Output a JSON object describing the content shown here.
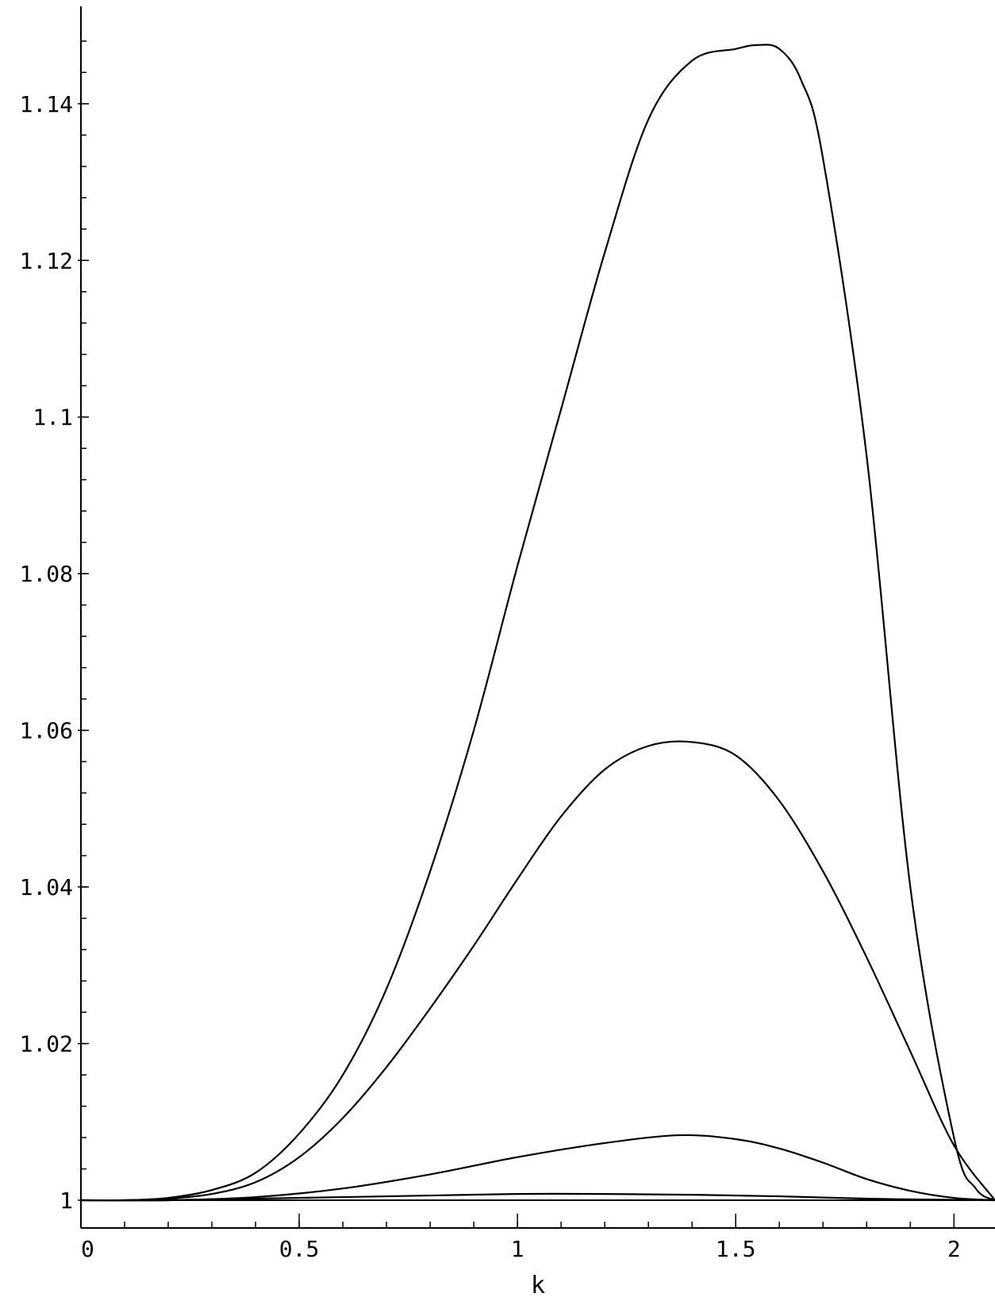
{
  "chart_data": {
    "type": "line",
    "title": "",
    "xlabel": "k",
    "ylabel": "",
    "xlim": [
      0,
      2.094
    ],
    "ylim": [
      1.0,
      1.1495
    ],
    "grid": false,
    "legend": "none",
    "line_color": "#000000",
    "x_ticks": [
      {
        "value": 0,
        "label": "0"
      },
      {
        "value": 0.5,
        "label": "0.5"
      },
      {
        "value": 1,
        "label": "1"
      },
      {
        "value": 1.5,
        "label": "1.5"
      },
      {
        "value": 2,
        "label": "2"
      }
    ],
    "y_ticks": [
      {
        "value": 1.0,
        "label": "1"
      },
      {
        "value": 1.02,
        "label": "1.02"
      },
      {
        "value": 1.04,
        "label": "1.04"
      },
      {
        "value": 1.06,
        "label": "1.06"
      },
      {
        "value": 1.08,
        "label": "1.08"
      },
      {
        "value": 1.1,
        "label": "1.1"
      },
      {
        "value": 1.12,
        "label": "1.12"
      },
      {
        "value": 1.14,
        "label": "1.14"
      }
    ],
    "series": [
      {
        "x": [
          0,
          0.1,
          0.2,
          0.3,
          0.4,
          0.5,
          0.6,
          0.7,
          0.8,
          0.9,
          1.0,
          1.1,
          1.2,
          1.3,
          1.4,
          1.5,
          1.55,
          1.6,
          1.65,
          1.7,
          1.8,
          1.9,
          2.0,
          2.05,
          2.094
        ],
        "y": [
          1.0,
          1.0,
          1.0003,
          1.0013,
          1.0035,
          1.0085,
          1.016,
          1.027,
          1.042,
          1.06,
          1.081,
          1.101,
          1.121,
          1.138,
          1.1455,
          1.147,
          1.1475,
          1.147,
          1.143,
          1.133,
          1.095,
          1.04,
          1.008,
          1.0015,
          1.0
        ]
      },
      {
        "x": [
          0,
          0.1,
          0.2,
          0.3,
          0.4,
          0.5,
          0.6,
          0.7,
          0.8,
          0.9,
          1.0,
          1.1,
          1.2,
          1.3,
          1.4,
          1.5,
          1.6,
          1.7,
          1.8,
          1.9,
          2.0,
          2.094
        ],
        "y": [
          1.0,
          1.0,
          1.0002,
          1.0008,
          1.0023,
          1.0055,
          1.0105,
          1.017,
          1.0245,
          1.0325,
          1.041,
          1.049,
          1.055,
          1.058,
          1.0585,
          1.0568,
          1.051,
          1.042,
          1.031,
          1.019,
          1.007,
          1.0
        ]
      },
      {
        "x": [
          0,
          0.2,
          0.4,
          0.6,
          0.8,
          1.0,
          1.2,
          1.37,
          1.5,
          1.6,
          1.7,
          1.8,
          1.9,
          2.0,
          2.094
        ],
        "y": [
          1.0,
          1.0,
          1.0004,
          1.0015,
          1.0033,
          1.0055,
          1.0073,
          1.0083,
          1.0078,
          1.0066,
          1.0048,
          1.0027,
          1.0012,
          1.0003,
          1.0
        ]
      },
      {
        "x": [
          0,
          0.2,
          0.4,
          0.6,
          0.8,
          1.0,
          1.2,
          1.4,
          1.6,
          1.8,
          2.0,
          2.094
        ],
        "y": [
          1.0,
          1.0,
          1.0002,
          1.0004,
          1.0006,
          1.0008,
          1.0008,
          1.0007,
          1.0005,
          1.0002,
          1.00005,
          1.0
        ]
      }
    ]
  }
}
